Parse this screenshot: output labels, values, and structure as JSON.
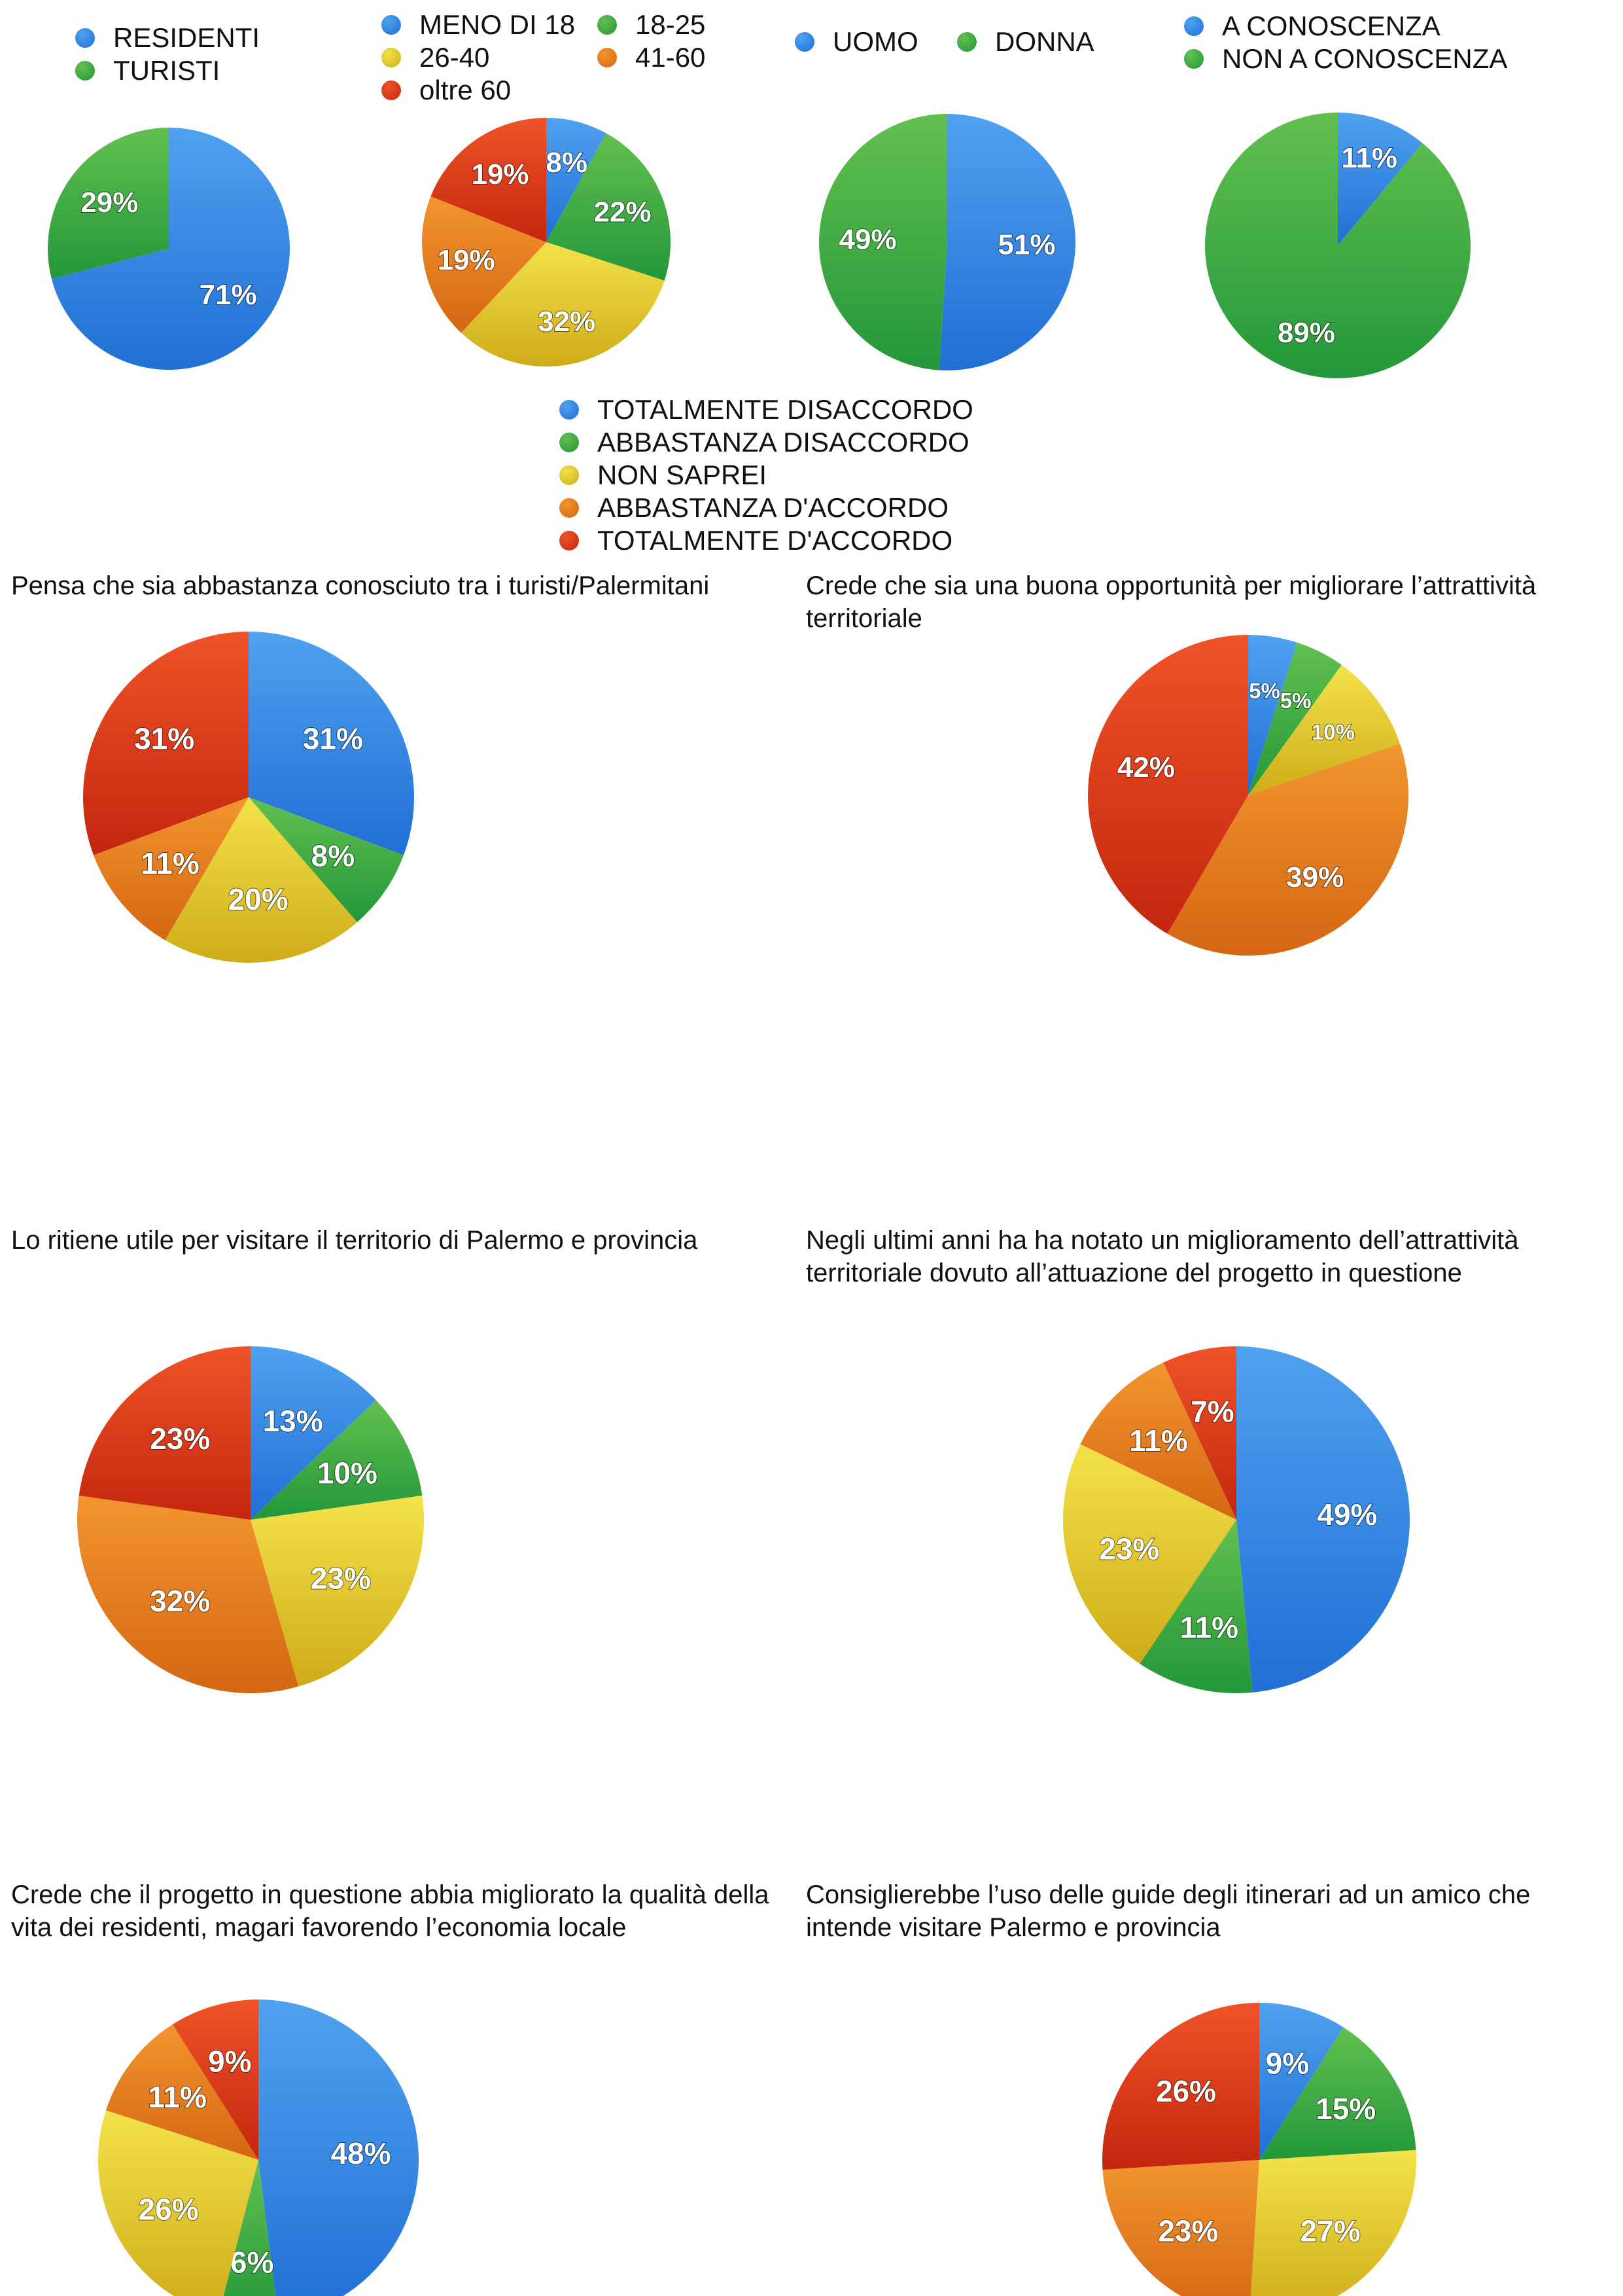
{
  "colors": {
    "blue": [
      "#4fa2ef",
      "#1f6fd6"
    ],
    "green": [
      "#62c04f",
      "#23973a"
    ],
    "yellow": [
      "#f4e24a",
      "#ceac18"
    ],
    "orange": [
      "#f2952f",
      "#d56612"
    ],
    "red": [
      "#f05328",
      "#c4260e"
    ]
  },
  "legends": {
    "residence": [
      {
        "label": "RESIDENTI",
        "color": "blue"
      },
      {
        "label": "TURISTI",
        "color": "green"
      }
    ],
    "age": [
      {
        "label": "MENO DI 18",
        "color": "blue"
      },
      {
        "label": "18-25",
        "color": "green"
      },
      {
        "label": "26-40",
        "color": "yellow"
      },
      {
        "label": "41-60",
        "color": "orange"
      },
      {
        "label": "oltre 60",
        "color": "red"
      }
    ],
    "gender": [
      {
        "label": "UOMO",
        "color": "blue"
      },
      {
        "label": "DONNA",
        "color": "green"
      }
    ],
    "awareness": [
      {
        "label": "A CONOSCENZA",
        "color": "blue"
      },
      {
        "label": "NON A CONOSCENZA",
        "color": "green"
      }
    ],
    "agreement": [
      {
        "label": "TOTALMENTE DISACCORDO",
        "color": "blue"
      },
      {
        "label": "ABBASTANZA  DISACCORDO",
        "color": "green"
      },
      {
        "label": "NON SAPREI",
        "color": "yellow"
      },
      {
        "label": "ABBASTANZA D'ACCORDO",
        "color": "orange"
      },
      {
        "label": "TOTALMENTE D'ACCORDO",
        "color": "red"
      }
    ]
  },
  "titles": {
    "q1": "Pensa che sia abbastanza conosciuto tra i turisti/Palermitani",
    "q2": "Crede che sia una buona opportunità per migliorare l’attrattività territoriale",
    "q3": "Lo ritiene utile per visitare il territorio di Palermo e provincia",
    "q4": "Negli ultimi anni ha ha notato un miglioramento dell’attrattività territoriale dovuto all’attuazione del progetto in questione",
    "q5": "Crede che il progetto in questione abbia migliorato la qualità della vita dei residenti, magari favorendo l’economia locale",
    "q6": "Consiglierebbe l’uso delle guide degli itinerari ad un amico che intende visitare Palermo e provincia"
  },
  "chart_data": [
    {
      "id": "residence",
      "type": "pie",
      "title": "",
      "slices": [
        {
          "label": "RESIDENTI",
          "value": 71,
          "text": "71%",
          "color": "blue"
        },
        {
          "label": "TURISTI",
          "value": 29,
          "text": "29%",
          "color": "green"
        }
      ]
    },
    {
      "id": "age",
      "type": "pie",
      "title": "",
      "slices": [
        {
          "label": "MENO DI 18",
          "value": 8,
          "text": "8%",
          "color": "blue"
        },
        {
          "label": "18-25",
          "value": 22,
          "text": "22%",
          "color": "green"
        },
        {
          "label": "26-40",
          "value": 32,
          "text": "32%",
          "color": "yellow"
        },
        {
          "label": "41-60",
          "value": 19,
          "text": "19%",
          "color": "orange"
        },
        {
          "label": "oltre 60",
          "value": 19,
          "text": "19%",
          "color": "red"
        }
      ]
    },
    {
      "id": "gender",
      "type": "pie",
      "title": "",
      "slices": [
        {
          "label": "UOMO",
          "value": 51,
          "text": "51%",
          "color": "blue"
        },
        {
          "label": "DONNA",
          "value": 49,
          "text": "49%",
          "color": "green"
        }
      ]
    },
    {
      "id": "awareness",
      "type": "pie",
      "title": "",
      "slices": [
        {
          "label": "A CONOSCENZA",
          "value": 11,
          "text": "11%",
          "color": "blue"
        },
        {
          "label": "NON A CONOSCENZA",
          "value": 89,
          "text": "89%",
          "color": "green"
        }
      ]
    },
    {
      "id": "q1",
      "type": "pie",
      "title": "Pensa che sia abbastanza conosciuto tra i turisti/Palermitani",
      "slices": [
        {
          "label": "TOTALMENTE DISACCORDO",
          "value": 31,
          "text": "31%",
          "color": "blue"
        },
        {
          "label": "ABBASTANZA  DISACCORDO",
          "value": 8,
          "text": "8%",
          "color": "green"
        },
        {
          "label": "NON SAPREI",
          "value": 20,
          "text": "20%",
          "color": "yellow"
        },
        {
          "label": "ABBASTANZA D'ACCORDO",
          "value": 11,
          "text": "11%",
          "color": "orange"
        },
        {
          "label": "TOTALMENTE D'ACCORDO",
          "value": 31,
          "text": "31%",
          "color": "red"
        }
      ]
    },
    {
      "id": "q2",
      "type": "pie",
      "title": "Crede che sia una buona opportunità per migliorare l’attrattività territoriale",
      "slices": [
        {
          "label": "TOTALMENTE DISACCORDO",
          "value": 5,
          "text": "5%",
          "color": "blue"
        },
        {
          "label": "ABBASTANZA  DISACCORDO",
          "value": 5,
          "text": "5%",
          "color": "green"
        },
        {
          "label": "NON SAPREI",
          "value": 10,
          "text": "10%",
          "color": "yellow"
        },
        {
          "label": "ABBASTANZA D'ACCORDO",
          "value": 39,
          "text": "39%",
          "color": "orange"
        },
        {
          "label": "TOTALMENTE D'ACCORDO",
          "value": 42,
          "text": "42%",
          "color": "red"
        }
      ]
    },
    {
      "id": "q3",
      "type": "pie",
      "title": "Lo ritiene utile per visitare il territorio di Palermo e provincia",
      "slices": [
        {
          "label": "TOTALMENTE DISACCORDO",
          "value": 13,
          "text": "13%",
          "color": "blue"
        },
        {
          "label": "ABBASTANZA  DISACCORDO",
          "value": 10,
          "text": "10%",
          "color": "green"
        },
        {
          "label": "NON SAPREI",
          "value": 23,
          "text": "23%",
          "color": "yellow"
        },
        {
          "label": "ABBASTANZA D'ACCORDO",
          "value": 32,
          "text": "32%",
          "color": "orange"
        },
        {
          "label": "TOTALMENTE D'ACCORDO",
          "value": 23,
          "text": "23%",
          "color": "red"
        }
      ]
    },
    {
      "id": "q4",
      "type": "pie",
      "title": "Negli ultimi anni ha ha notato un miglioramento dell’attrattività territoriale dovuto all’attuazione del progetto in questione",
      "slices": [
        {
          "label": "TOTALMENTE DISACCORDO",
          "value": 49,
          "text": "49%",
          "color": "blue"
        },
        {
          "label": "ABBASTANZA  DISACCORDO",
          "value": 11,
          "text": "11%",
          "color": "green"
        },
        {
          "label": "NON SAPREI",
          "value": 23,
          "text": "23%",
          "color": "yellow"
        },
        {
          "label": "ABBASTANZA D'ACCORDO",
          "value": 11,
          "text": "11%",
          "color": "orange"
        },
        {
          "label": "TOTALMENTE D'ACCORDO",
          "value": 7,
          "text": "7%",
          "color": "red"
        }
      ]
    },
    {
      "id": "q5",
      "type": "pie",
      "title": "Crede che il progetto in questione abbia migliorato la qualità della vita dei residenti, magari favorendo l’economia locale",
      "slices": [
        {
          "label": "TOTALMENTE DISACCORDO",
          "value": 48,
          "text": "48%",
          "color": "blue"
        },
        {
          "label": "ABBASTANZA  DISACCORDO",
          "value": 6,
          "text": "6%",
          "color": "green"
        },
        {
          "label": "NON SAPREI",
          "value": 26,
          "text": "26%",
          "color": "yellow"
        },
        {
          "label": "ABBASTANZA D'ACCORDO",
          "value": 11,
          "text": "11%",
          "color": "orange"
        },
        {
          "label": "TOTALMENTE D'ACCORDO",
          "value": 9,
          "text": "9%",
          "color": "red"
        }
      ]
    },
    {
      "id": "q6",
      "type": "pie",
      "title": "Consiglierebbe l’uso delle guide degli itinerari ad un amico che intende visitare Palermo e provincia",
      "slices": [
        {
          "label": "TOTALMENTE DISACCORDO",
          "value": 9,
          "text": "9%",
          "color": "blue"
        },
        {
          "label": "ABBASTANZA  DISACCORDO",
          "value": 15,
          "text": "15%",
          "color": "green"
        },
        {
          "label": "NON SAPREI",
          "value": 27,
          "text": "27%",
          "color": "yellow"
        },
        {
          "label": "ABBASTANZA D'ACCORDO",
          "value": 23,
          "text": "23%",
          "color": "orange"
        },
        {
          "label": "TOTALMENTE D'ACCORDO",
          "value": 26,
          "text": "26%",
          "color": "red"
        }
      ]
    }
  ]
}
